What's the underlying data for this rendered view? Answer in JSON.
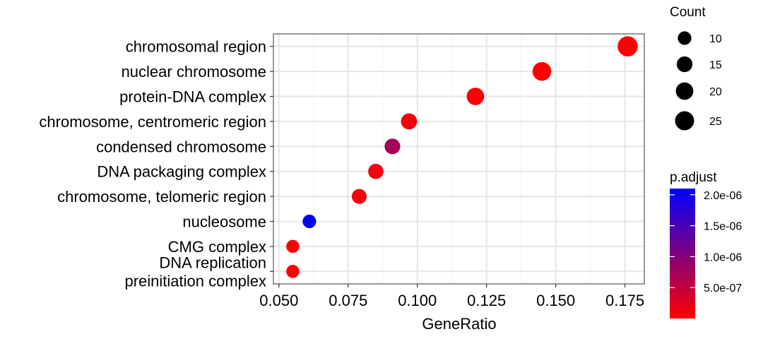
{
  "chart_data": {
    "type": "scatter",
    "title": "",
    "xlabel": "GeneRatio",
    "ylabel": "",
    "xlim": [
      0.048,
      0.182
    ],
    "x_ticks": [
      "0.050",
      "0.075",
      "0.100",
      "0.125",
      "0.150",
      "0.175"
    ],
    "x_tick_values": [
      0.05,
      0.075,
      0.1,
      0.125,
      0.15,
      0.175
    ],
    "grid": true,
    "categories": [
      "chromosomal region",
      "nuclear chromosome",
      "protein-DNA complex",
      "chromosome, centromeric region",
      "condensed chromosome",
      "DNA packaging complex",
      "chromosome, telomeric region",
      "nucleosome",
      "CMG complex",
      "DNA replication\npreinitiation complex"
    ],
    "points": [
      {
        "term": "chromosomal region",
        "gene_ratio": 0.176,
        "count": 29,
        "p_adjust": 1e-08
      },
      {
        "term": "nuclear chromosome",
        "gene_ratio": 0.145,
        "count": 24,
        "p_adjust": 1e-08
      },
      {
        "term": "protein-DNA complex",
        "gene_ratio": 0.121,
        "count": 20,
        "p_adjust": 1e-08
      },
      {
        "term": "chromosome, centromeric region",
        "gene_ratio": 0.097,
        "count": 16,
        "p_adjust": 1e-07
      },
      {
        "term": "condensed chromosome",
        "gene_ratio": 0.091,
        "count": 15,
        "p_adjust": 7.5e-07
      },
      {
        "term": "DNA packaging complex",
        "gene_ratio": 0.085,
        "count": 14,
        "p_adjust": 1e-07
      },
      {
        "term": "chromosome, telomeric region",
        "gene_ratio": 0.079,
        "count": 13,
        "p_adjust": 1e-07
      },
      {
        "term": "nucleosome",
        "gene_ratio": 0.061,
        "count": 10,
        "p_adjust": 2.1e-06
      },
      {
        "term": "CMG complex",
        "gene_ratio": 0.055,
        "count": 9,
        "p_adjust": 1e-08
      },
      {
        "term": "DNA replication\npreinitiation complex",
        "gene_ratio": 0.055,
        "count": 9,
        "p_adjust": 1e-08
      }
    ],
    "legend_count": {
      "title": "Count",
      "items": [
        {
          "label": "10",
          "value": 10
        },
        {
          "label": "15",
          "value": 15
        },
        {
          "label": "20",
          "value": 20
        },
        {
          "label": "25",
          "value": 25
        }
      ]
    },
    "legend_padjust": {
      "title": "p.adjust",
      "range": [
        0,
        2.1e-06
      ],
      "ticks": [
        {
          "label": "2.0e-06",
          "value": 2e-06
        },
        {
          "label": "1.5e-06",
          "value": 1.5e-06
        },
        {
          "label": "1.0e-06",
          "value": 1e-06
        },
        {
          "label": "5.0e-07",
          "value": 5e-07
        }
      ],
      "color_low": "#FF0000",
      "color_high": "#0000FF"
    },
    "legend_placement": "right"
  }
}
